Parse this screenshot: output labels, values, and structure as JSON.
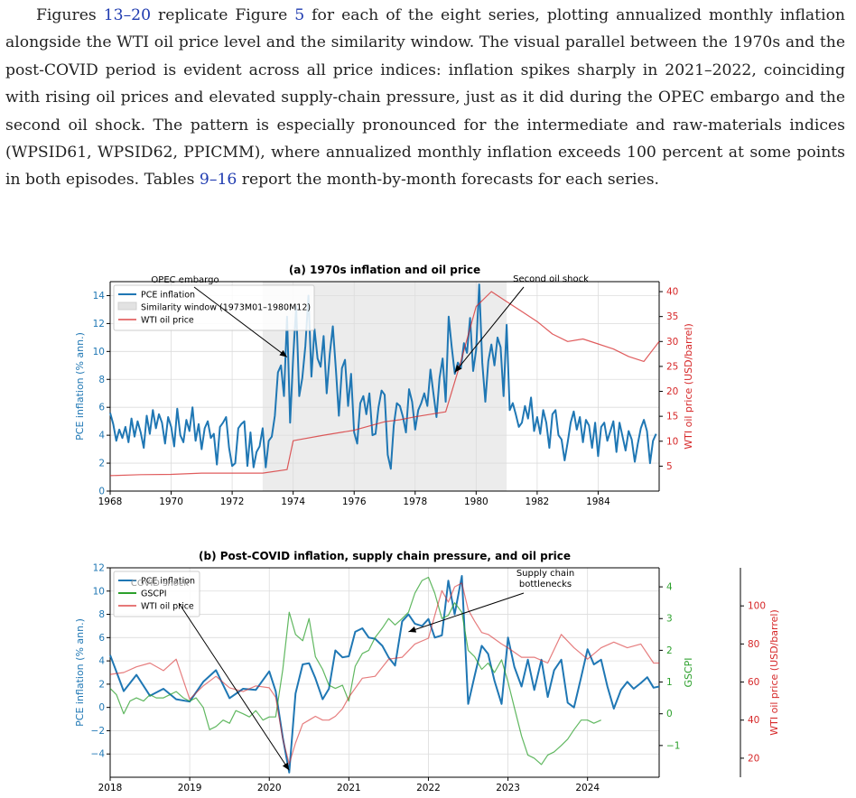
{
  "paragraph": {
    "s1": "Figures ",
    "fig_first": "13",
    "dash1": "–",
    "fig_last": "20",
    "s2": " replicate Figure ",
    "fig5": "5",
    "s3": " for each of the eight series, plotting annualized monthly inflation alongside the WTI oil price level and the similarity window. The visual parallel between the 1970s and the post-COVID period is evident across all price indices: inflation spikes sharply in 2021–2022, coinciding with rising oil prices and elevated supply-chain pressure, just as it did during the OPEC embargo and the second oil shock. The pattern is especially pronounced for the intermediate and raw-materials indices (WPSID61, WPSID62, PPICMM), where annualized monthly inflation exceeds 100 percent at some points in both episodes. Tables ",
    "tab_first": "9",
    "dash2": "–",
    "tab_last": "16",
    "s4": " report the month-by-month forecasts for each series."
  },
  "colors": {
    "pce": "#1f77b4",
    "oil": "#d62728",
    "gscpi": "#2ca02c",
    "window": "#ececec"
  },
  "chart_data": [
    {
      "type": "line",
      "title": "(a) 1970s inflation and oil price",
      "ylabel": "PCE inflation (% ann.)",
      "y2label": "WTI oil price (USD/barrel)",
      "xlim": [
        1968.0,
        1986.0
      ],
      "ylim": [
        0,
        15
      ],
      "y2lim": [
        0,
        42
      ],
      "xticks": [
        1968,
        1970,
        1972,
        1974,
        1976,
        1978,
        1980,
        1982,
        1984
      ],
      "yticks": [
        0,
        2,
        4,
        6,
        8,
        10,
        12,
        14
      ],
      "y2ticks": [
        5,
        10,
        15,
        20,
        25,
        30,
        35,
        40
      ],
      "similarity_window": [
        1973.0,
        1981.0
      ],
      "grid": true,
      "legend_position": "upper left",
      "legend": [
        "PCE inflation",
        "Similarity window (1973M01–1980M12)",
        "WTI oil price"
      ],
      "annotations": [
        {
          "text": "OPEC embargo",
          "target": [
            1973.8,
            9.6
          ]
        },
        {
          "text": "Second oil shock",
          "target": [
            1979.3,
            8.5
          ]
        }
      ],
      "series": [
        {
          "name": "PCE inflation",
          "axis": "left",
          "x": [
            1968.0,
            1968.1,
            1968.2,
            1968.3,
            1968.4,
            1968.5,
            1968.6,
            1968.7,
            1968.8,
            1968.9,
            1969.0,
            1969.1,
            1969.2,
            1969.3,
            1969.4,
            1969.5,
            1969.6,
            1969.7,
            1969.8,
            1969.9,
            1970.0,
            1970.1,
            1970.2,
            1970.3,
            1970.4,
            1970.5,
            1970.6,
            1970.7,
            1970.8,
            1970.9,
            1971.0,
            1971.1,
            1971.2,
            1971.3,
            1971.4,
            1971.5,
            1971.6,
            1971.7,
            1971.8,
            1971.9,
            1972.0,
            1972.1,
            1972.2,
            1972.3,
            1972.4,
            1972.5,
            1972.6,
            1972.7,
            1972.8,
            1972.9,
            1973.0,
            1973.1,
            1973.2,
            1973.3,
            1973.4,
            1973.5,
            1973.6,
            1973.7,
            1973.8,
            1973.9,
            1974.0,
            1974.1,
            1974.2,
            1974.3,
            1974.4,
            1974.5,
            1974.6,
            1974.7,
            1974.8,
            1974.9,
            1975.0,
            1975.1,
            1975.2,
            1975.3,
            1975.4,
            1975.5,
            1975.6,
            1975.7,
            1975.8,
            1975.9,
            1976.0,
            1976.1,
            1976.2,
            1976.3,
            1976.4,
            1976.5,
            1976.6,
            1976.7,
            1976.8,
            1976.9,
            1977.0,
            1977.1,
            1977.2,
            1977.3,
            1977.4,
            1977.5,
            1977.6,
            1977.7,
            1977.8,
            1977.9,
            1978.0,
            1978.1,
            1978.2,
            1978.3,
            1978.4,
            1978.5,
            1978.6,
            1978.7,
            1978.8,
            1978.9,
            1979.0,
            1979.1,
            1979.2,
            1979.3,
            1979.4,
            1979.5,
            1979.6,
            1979.7,
            1979.8,
            1979.9,
            1980.0,
            1980.1,
            1980.2,
            1980.3,
            1980.4,
            1980.5,
            1980.6,
            1980.7,
            1980.8,
            1980.9,
            1981.0,
            1981.1,
            1981.2,
            1981.3,
            1981.4,
            1981.5,
            1981.6,
            1981.7,
            1981.8,
            1981.9,
            1982.0,
            1982.1,
            1982.2,
            1982.3,
            1982.4,
            1982.5,
            1982.6,
            1982.7,
            1982.8,
            1982.9,
            1983.0,
            1983.1,
            1983.2,
            1983.3,
            1983.4,
            1983.5,
            1983.6,
            1983.7,
            1983.8,
            1983.9,
            1984.0,
            1984.1,
            1984.2,
            1984.3,
            1984.4,
            1984.5,
            1984.6,
            1984.7,
            1984.8,
            1984.9,
            1985.0,
            1985.1,
            1985.2,
            1985.3,
            1985.4,
            1985.5,
            1985.6,
            1985.7,
            1985.8,
            1985.9
          ],
          "y": [
            5.6,
            4.8,
            3.6,
            4.4,
            3.8,
            4.6,
            3.5,
            5.2,
            3.9,
            5.0,
            4.2,
            3.1,
            5.4,
            4.1,
            5.8,
            4.5,
            5.5,
            4.9,
            3.4,
            5.3,
            4.6,
            3.2,
            5.9,
            4.0,
            3.5,
            5.1,
            4.3,
            6.0,
            3.6,
            4.8,
            3.0,
            4.5,
            5.0,
            3.8,
            4.1,
            1.9,
            4.6,
            4.9,
            5.3,
            3.1,
            1.8,
            2.0,
            4.5,
            4.8,
            5.0,
            1.8,
            4.2,
            1.7,
            2.8,
            3.2,
            4.5,
            1.7,
            3.6,
            3.9,
            5.4,
            8.5,
            9.0,
            6.8,
            12.5,
            4.9,
            9.6,
            13.2,
            6.8,
            8.1,
            10.4,
            14.0,
            8.2,
            11.6,
            9.5,
            8.9,
            11.1,
            7.0,
            9.8,
            11.8,
            8.7,
            5.4,
            8.8,
            9.4,
            6.1,
            8.4,
            4.2,
            3.4,
            6.3,
            6.8,
            5.5,
            7.0,
            4.0,
            4.1,
            6.0,
            7.2,
            6.9,
            2.6,
            1.6,
            4.7,
            6.3,
            6.1,
            5.3,
            4.2,
            7.3,
            6.4,
            4.4,
            5.8,
            6.3,
            7.0,
            6.1,
            8.7,
            7.0,
            5.3,
            8.1,
            9.5,
            6.4,
            12.5,
            10.3,
            8.4,
            9.2,
            8.8,
            10.6,
            9.9,
            12.4,
            8.6,
            10.1,
            14.8,
            9.2,
            6.4,
            9.3,
            10.5,
            9.0,
            11.0,
            10.3,
            6.8,
            11.9,
            5.8,
            6.3,
            5.5,
            4.6,
            4.9,
            6.1,
            5.2,
            6.7,
            4.3,
            5.3,
            4.1,
            5.8,
            4.9,
            3.1,
            5.5,
            5.8,
            4.0,
            3.7,
            2.2,
            3.5,
            4.9,
            5.7,
            4.4,
            5.3,
            3.5,
            5.1,
            4.7,
            3.1,
            4.9,
            2.5,
            4.6,
            4.9,
            3.6,
            4.3,
            5.0,
            2.8,
            4.9,
            3.9,
            2.9,
            4.3,
            3.7,
            2.1,
            3.4,
            4.5,
            5.1,
            4.3,
            2.0,
            3.6,
            4.1
          ]
        },
        {
          "name": "WTI oil price",
          "axis": "right",
          "x": [
            1968.0,
            1969.0,
            1970.0,
            1971.0,
            1972.0,
            1973.0,
            1973.8,
            1974.0,
            1975.0,
            1976.0,
            1977.0,
            1977.5,
            1978.0,
            1979.0,
            1979.5,
            1980.0,
            1980.5,
            1981.0,
            1981.5,
            1982.0,
            1982.5,
            1983.0,
            1983.5,
            1984.0,
            1984.5,
            1985.0,
            1985.5,
            1986.0
          ],
          "y": [
            3.1,
            3.3,
            3.35,
            3.6,
            3.6,
            3.6,
            4.3,
            10.1,
            11.2,
            12.2,
            13.9,
            14.3,
            14.9,
            15.9,
            26.0,
            37.0,
            40.0,
            38.0,
            36.0,
            34.0,
            31.5,
            30.0,
            30.5,
            29.5,
            28.5,
            27.0,
            26.0,
            30.0
          ]
        }
      ]
    },
    {
      "type": "line",
      "title": "(b) Post-COVID inflation, supply chain pressure, and oil price",
      "ylabel": "PCE inflation (% ann.)",
      "y2label": "GSCPI",
      "y3label": "WTI oil price (USD/barrel)",
      "xlim": [
        2018.0,
        2024.9
      ],
      "ylim": [
        -6,
        12
      ],
      "y2lim": [
        -2.0,
        4.6
      ],
      "y3lim": [
        10,
        120
      ],
      "xticks": [
        2018,
        2019,
        2020,
        2021,
        2022,
        2023,
        2024
      ],
      "yticks": [
        -4,
        -2,
        0,
        2,
        4,
        6,
        8,
        10,
        12
      ],
      "y2ticks": [
        -1,
        0,
        1,
        2,
        3,
        4
      ],
      "y3ticks": [
        20,
        40,
        60,
        80,
        100
      ],
      "grid": true,
      "legend_position": "upper left",
      "legend": [
        "PCE inflation",
        "GSCPI",
        "WTI oil price"
      ],
      "annotations": [
        {
          "text": "COVID shock",
          "target": [
            2020.25,
            -5.4
          ]
        },
        {
          "text": "Supply chain bottlenecks",
          "target": [
            2021.75,
            6.5
          ]
        }
      ],
      "series": [
        {
          "name": "PCE inflation",
          "axis": "left",
          "x": [
            2018.0,
            2018.17,
            2018.33,
            2018.5,
            2018.67,
            2018.83,
            2019.0,
            2019.17,
            2019.33,
            2019.5,
            2019.67,
            2019.83,
            2020.0,
            2020.08,
            2020.17,
            2020.25,
            2020.33,
            2020.42,
            2020.5,
            2020.58,
            2020.67,
            2020.75,
            2020.83,
            2020.92,
            2021.0,
            2021.08,
            2021.17,
            2021.25,
            2021.33,
            2021.42,
            2021.5,
            2021.58,
            2021.67,
            2021.75,
            2021.83,
            2021.92,
            2022.0,
            2022.08,
            2022.17,
            2022.25,
            2022.33,
            2022.42,
            2022.5,
            2022.58,
            2022.67,
            2022.75,
            2022.83,
            2022.92,
            2023.0,
            2023.08,
            2023.17,
            2023.25,
            2023.33,
            2023.42,
            2023.5,
            2023.58,
            2023.67,
            2023.75,
            2023.83,
            2023.92,
            2024.0,
            2024.08,
            2024.17,
            2024.25,
            2024.33,
            2024.42,
            2024.5,
            2024.58,
            2024.67,
            2024.75,
            2024.83,
            2024.9
          ],
          "y": [
            4.5,
            1.4,
            2.8,
            1.0,
            1.6,
            0.7,
            0.5,
            2.2,
            3.2,
            0.8,
            1.6,
            1.5,
            3.1,
            1.4,
            -2.6,
            -5.6,
            1.2,
            3.7,
            3.8,
            2.5,
            0.7,
            1.6,
            4.9,
            4.3,
            4.4,
            6.5,
            6.8,
            6.0,
            5.9,
            5.3,
            4.3,
            3.6,
            7.4,
            8.0,
            7.2,
            7.0,
            7.6,
            6.0,
            6.2,
            10.9,
            8.0,
            11.3,
            0.3,
            2.7,
            5.3,
            4.6,
            2.3,
            0.3,
            6.0,
            3.5,
            1.8,
            4.1,
            1.5,
            4.1,
            0.9,
            3.2,
            4.1,
            0.4,
            0.0,
            2.6,
            5.0,
            3.7,
            4.1,
            1.8,
            -0.1,
            1.5,
            2.2,
            1.6,
            2.1,
            2.6,
            1.7,
            1.8
          ]
        },
        {
          "name": "GSCPI",
          "axis": "right",
          "x": [
            2018.0,
            2018.08,
            2018.17,
            2018.25,
            2018.33,
            2018.42,
            2018.5,
            2018.58,
            2018.67,
            2018.75,
            2018.83,
            2018.92,
            2019.0,
            2019.08,
            2019.17,
            2019.25,
            2019.33,
            2019.42,
            2019.5,
            2019.58,
            2019.67,
            2019.75,
            2019.83,
            2019.92,
            2020.0,
            2020.08,
            2020.17,
            2020.25,
            2020.33,
            2020.42,
            2020.5,
            2020.58,
            2020.67,
            2020.75,
            2020.83,
            2020.92,
            2021.0,
            2021.08,
            2021.17,
            2021.25,
            2021.33,
            2021.42,
            2021.5,
            2021.58,
            2021.67,
            2021.75,
            2021.83,
            2021.92,
            2022.0,
            2022.08,
            2022.17,
            2022.25,
            2022.33,
            2022.42,
            2022.5,
            2022.58,
            2022.67,
            2022.75,
            2022.83,
            2022.92,
            2023.0,
            2023.08,
            2023.17,
            2023.25,
            2023.33,
            2023.42,
            2023.5,
            2023.58,
            2023.67,
            2023.75,
            2023.83,
            2023.92,
            2024.0,
            2024.08,
            2024.17
          ],
          "y": [
            0.8,
            0.6,
            0.0,
            0.4,
            0.5,
            0.4,
            0.6,
            0.5,
            0.5,
            0.6,
            0.7,
            0.5,
            0.4,
            0.5,
            0.2,
            -0.5,
            -0.4,
            -0.2,
            -0.3,
            0.1,
            0.0,
            -0.1,
            0.1,
            -0.2,
            -0.1,
            -0.1,
            1.4,
            3.2,
            2.5,
            2.3,
            3.0,
            1.8,
            1.4,
            0.9,
            0.8,
            0.9,
            0.4,
            1.5,
            1.9,
            2.0,
            2.4,
            2.7,
            3.0,
            2.8,
            3.0,
            3.2,
            3.8,
            4.2,
            4.3,
            3.8,
            3.0,
            3.1,
            3.5,
            3.2,
            2.0,
            1.8,
            1.4,
            1.6,
            1.3,
            1.7,
            1.0,
            0.2,
            -0.7,
            -1.3,
            -1.4,
            -1.6,
            -1.3,
            -1.2,
            -1.0,
            -0.8,
            -0.5,
            -0.2,
            -0.2,
            -0.3,
            -0.2
          ]
        },
        {
          "name": "WTI oil price",
          "axis": "right2",
          "x": [
            2018.0,
            2018.17,
            2018.33,
            2018.5,
            2018.67,
            2018.83,
            2019.0,
            2019.17,
            2019.33,
            2019.5,
            2019.67,
            2019.83,
            2020.0,
            2020.08,
            2020.17,
            2020.25,
            2020.33,
            2020.42,
            2020.5,
            2020.58,
            2020.67,
            2020.75,
            2020.83,
            2020.92,
            2021.0,
            2021.17,
            2021.33,
            2021.5,
            2021.67,
            2021.83,
            2022.0,
            2022.08,
            2022.17,
            2022.25,
            2022.33,
            2022.42,
            2022.5,
            2022.58,
            2022.67,
            2022.75,
            2022.92,
            2023.0,
            2023.17,
            2023.33,
            2023.5,
            2023.67,
            2023.83,
            2024.0,
            2024.17,
            2024.33,
            2024.5,
            2024.67,
            2024.83,
            2024.9
          ],
          "y": [
            64,
            65,
            68,
            70,
            66,
            72,
            51,
            58,
            63,
            57,
            55,
            58,
            57,
            52,
            30,
            17,
            28,
            38,
            40,
            42,
            40,
            40,
            42,
            46,
            52,
            62,
            63,
            72,
            73,
            80,
            83,
            95,
            108,
            102,
            110,
            112,
            98,
            92,
            86,
            85,
            80,
            78,
            73,
            73,
            70,
            85,
            78,
            72,
            78,
            81,
            78,
            80,
            70,
            70
          ]
        }
      ]
    }
  ]
}
